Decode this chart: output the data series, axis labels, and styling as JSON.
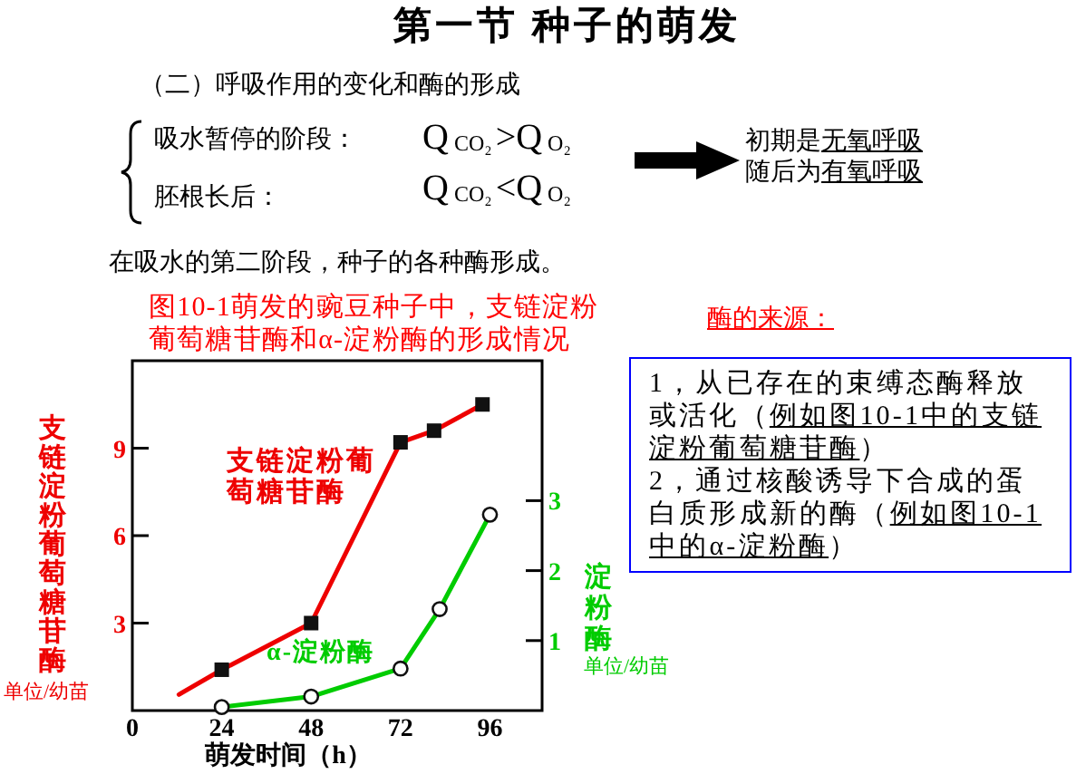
{
  "chart_data": {
    "type": "line",
    "title": "图10-1萌发的豌豆种子中，支链淀粉葡萄糖苷酶和α-淀粉酶的形成情况",
    "xlabel": "萌发时间（h）",
    "ylabel": "支链淀粉葡萄糖苷酶",
    "y2label": "淀粉酶",
    "xlim": [
      0,
      110
    ],
    "xticks": [
      0,
      24,
      48,
      72,
      96
    ],
    "ylim": [
      0,
      12
    ],
    "yticks": [
      3,
      6,
      9
    ],
    "y2lim": [
      0,
      5
    ],
    "y2ticks": [
      1,
      2,
      3
    ],
    "series": [
      {
        "color": "#ee0000",
        "x": [
          12.5,
          24
        ],
        "values": [
          0.55,
          1.4
        ]
      },
      {
        "name": "支链淀粉葡萄糖苷酶",
        "color": "#ee0000",
        "x": [
          24,
          48,
          72,
          81,
          94
        ],
        "values": [
          1.4,
          3.0,
          9.2,
          9.6,
          10.5
        ],
        "marker": "square"
      },
      {
        "name": "α-淀粉酶",
        "color": "#00cc00",
        "axis": "y2",
        "x": [
          24,
          48,
          72,
          82.5,
          96
        ],
        "values": [
          0.05,
          0.2,
          0.6,
          1.45,
          2.8
        ],
        "marker": "circle"
      }
    ],
    "annotations": [
      "第一节 种子的萌发",
      "（二）呼吸作用的变化和酶的形成",
      "吸水暂停的阶段：",
      "Q$_{CO₂}$>Q$_{O₂}$",
      "胚根长后：",
      "Q$_{CO₂}$<Q$_{O₂}$",
      "初期是",
      "无氧呼吸",
      "随后为",
      "有氧呼吸",
      "在吸水的第二阶段，种子的各种酶形成。",
      "酶的来源：",
      "1，从已存在的束缚态酶释放或活化（例如图10-1中的支链淀粉葡萄糖苷酶）",
      "2，通过核酸诱导下合成的蛋白质形成新的酶（例如图10-1中的α-淀粉酶）",
      "单位/幼苗",
      "单位/幼苗"
    ]
  }
}
